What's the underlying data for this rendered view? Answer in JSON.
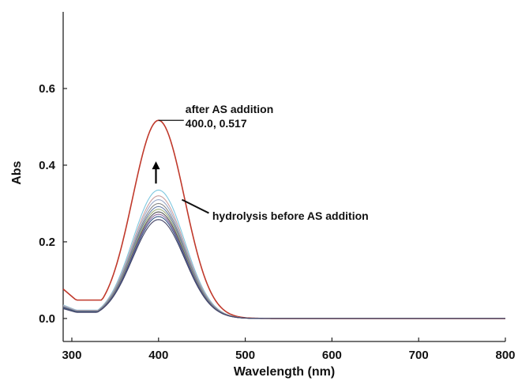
{
  "chart_data": {
    "type": "line",
    "xlabel": "Wavelength (nm)",
    "ylabel": "Abs",
    "xlim": [
      290,
      800
    ],
    "ylim": [
      -0.06,
      0.8
    ],
    "x_ticks": [
      300,
      400,
      500,
      600,
      700,
      800
    ],
    "y_ticks": [
      0.0,
      0.2,
      0.4,
      0.6
    ],
    "grid": false,
    "legend": "none",
    "peak_wavelength": 400,
    "series": [
      {
        "role": "after",
        "color": "#c0392b",
        "peak": 0.517,
        "edge": 0.048,
        "min_value": 0.032,
        "min_at": 306
      },
      {
        "role": "before",
        "color": "#7fc8e0",
        "peak": 0.335,
        "edge": 0.022
      },
      {
        "color": "#c9a0a0",
        "peak": 0.32,
        "edge": 0.021
      },
      {
        "color": "#9aa8c8",
        "peak": 0.31,
        "edge": 0.02
      },
      {
        "color": "#888888",
        "peak": 0.3,
        "edge": 0.019
      },
      {
        "color": "#6a7fa8",
        "peak": 0.292,
        "edge": 0.019
      },
      {
        "color": "#a0b080",
        "peak": 0.285,
        "edge": 0.018
      },
      {
        "color": "#555555",
        "peak": 0.278,
        "edge": 0.018
      },
      {
        "color": "#8a6aa0",
        "peak": 0.272,
        "edge": 0.017
      },
      {
        "color": "#3a5a8a",
        "peak": 0.266,
        "edge": 0.017
      },
      {
        "color": "#444466",
        "peak": 0.258,
        "edge": 0.016
      }
    ],
    "annotations": [
      {
        "id": "after",
        "text_line1": "after AS addition",
        "text_line2": "400.0, 0.517"
      },
      {
        "id": "before",
        "text": "hydrolysis before AS addition"
      }
    ]
  }
}
